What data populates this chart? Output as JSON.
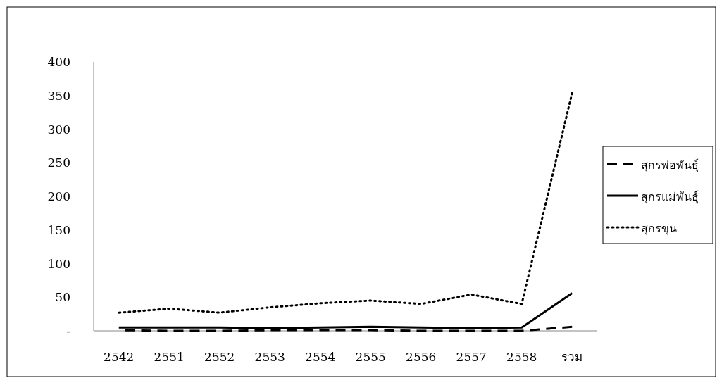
{
  "chart_data": {
    "type": "line",
    "categories": [
      "2542",
      "2551",
      "2552",
      "2553",
      "2554",
      "2555",
      "2556",
      "2557",
      "2558",
      "รวม"
    ],
    "series": [
      {
        "name": "สุกรพ่อพันธุ์",
        "color": "#000000",
        "line_style": "dashed",
        "values": [
          1,
          0,
          0,
          1,
          1,
          1,
          0,
          0,
          0,
          6
        ]
      },
      {
        "name": "สุกรแม่พันธุ์",
        "color": "#000000",
        "line_style": "solid",
        "values": [
          5,
          5,
          5,
          4,
          5,
          6,
          5,
          4,
          5,
          56
        ]
      },
      {
        "name": "สุกรขุน",
        "color": "#000000",
        "line_style": "dotted",
        "values": [
          27,
          33,
          27,
          35,
          41,
          45,
          40,
          54,
          40,
          354
        ]
      }
    ],
    "ylim": [
      0,
      400
    ],
    "yticks": [
      {
        "value": 0,
        "label": "-"
      },
      50,
      100,
      150,
      200,
      250,
      300,
      350,
      400
    ],
    "grid": false,
    "legend": "right",
    "marker": "none"
  }
}
